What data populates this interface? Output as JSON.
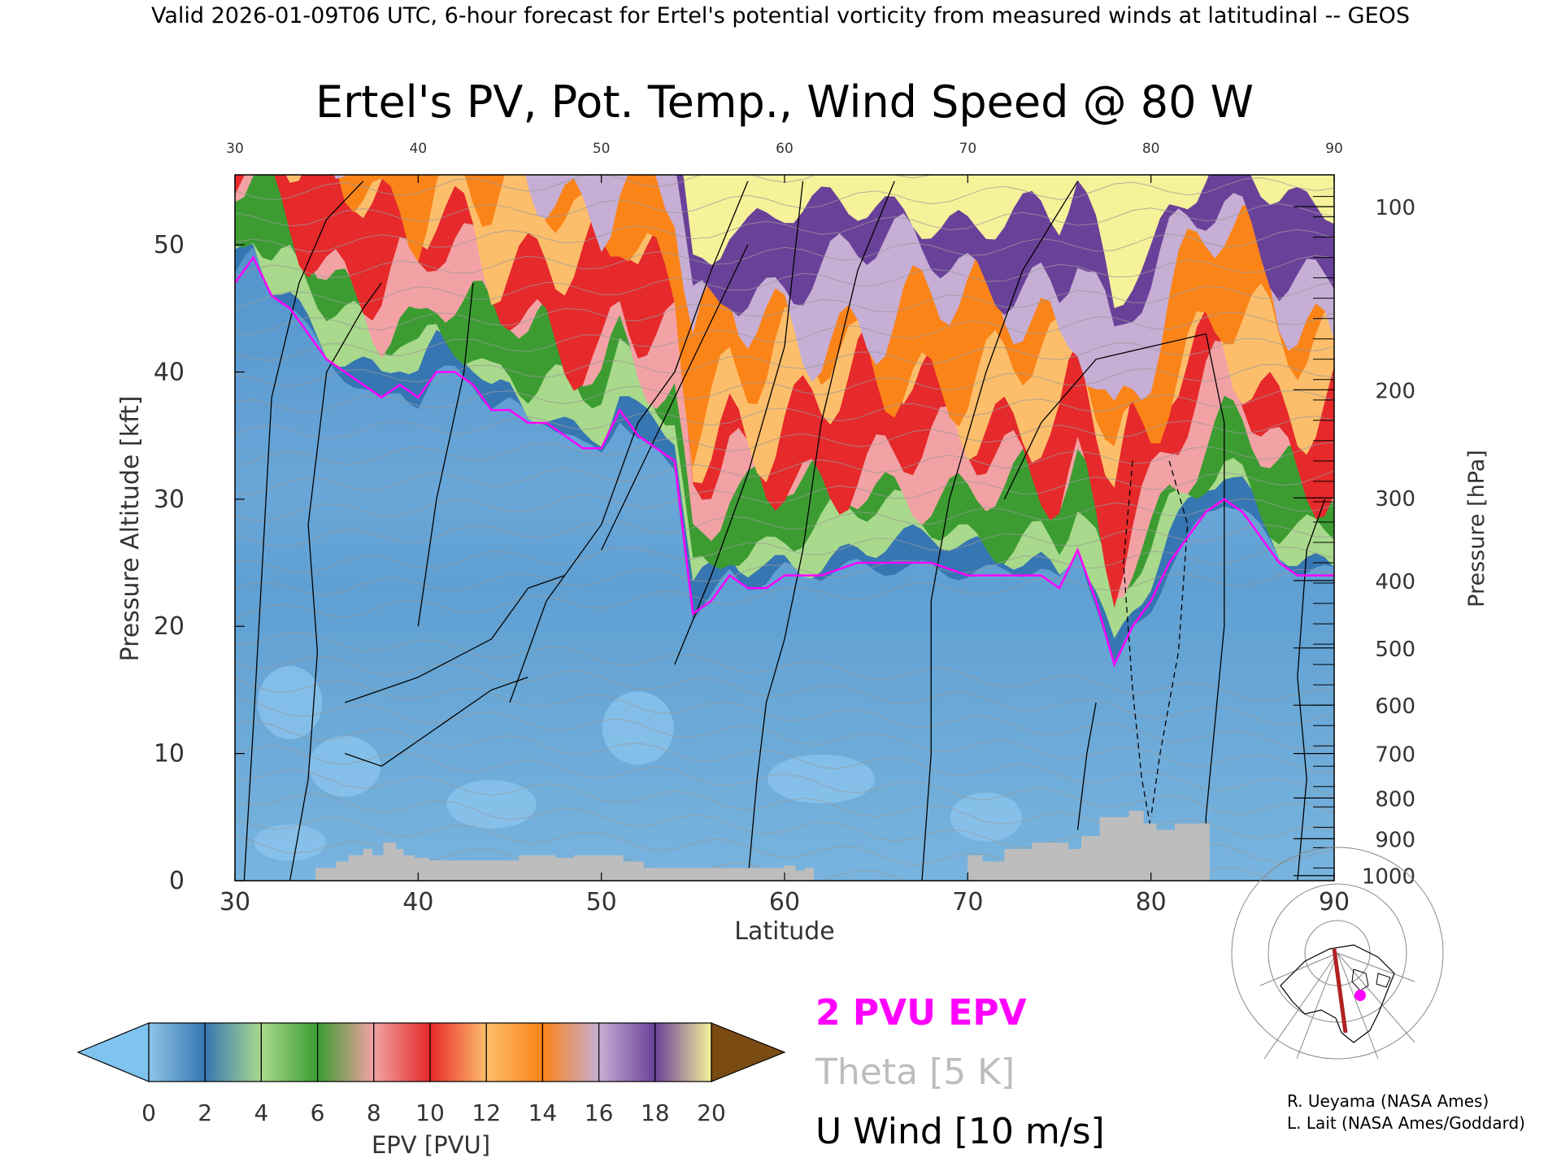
{
  "header": "Valid 2026-01-09T06 UTC, 6-hour forecast for Ertel's potential vorticity from measured winds at latitudinal -- GEOS",
  "chart_data": {
    "type": "heatmap",
    "title": "Ertel's PV, Pot. Temp., Wind Speed @ 80 W",
    "xlabel": "Latitude",
    "ylabel": "Pressure Altitude [kft]",
    "y2label": "Pressure [hPa]",
    "xlim": [
      30,
      90
    ],
    "ylim": [
      0,
      55.5
    ],
    "x_ticks": [
      "30",
      "40",
      "50",
      "60",
      "70",
      "80",
      "90"
    ],
    "y_ticks": [
      "0",
      "10",
      "20",
      "30",
      "40",
      "50"
    ],
    "y_tick_values": [
      0,
      10,
      20,
      30,
      40,
      50
    ],
    "pressure_ticks": [
      "100",
      "200",
      "300",
      "400",
      "500",
      "600",
      "700",
      "800",
      "900",
      "1000"
    ],
    "pressure_tick_kft": [
      53.0,
      38.6,
      30.1,
      23.6,
      18.3,
      13.8,
      10.0,
      6.5,
      3.3,
      0.4
    ],
    "tropopause_2pvu_kft": {
      "lat": [
        30,
        31,
        32,
        33,
        34,
        35,
        36,
        37,
        38,
        39,
        40,
        41,
        42,
        43,
        44,
        45,
        46,
        47,
        48,
        49,
        50,
        51,
        52,
        53,
        54,
        55,
        56,
        57,
        58,
        59,
        60,
        62,
        64,
        66,
        68,
        70,
        72,
        74,
        75,
        76,
        77,
        78,
        79,
        80,
        81,
        82,
        83,
        84,
        85,
        86,
        87,
        88,
        89,
        90
      ],
      "kft": [
        47,
        49,
        46,
        45,
        43,
        41,
        40,
        39,
        38,
        39,
        38,
        40,
        40,
        39,
        37,
        37,
        36,
        36,
        35,
        34,
        34,
        37,
        35,
        34,
        33,
        21,
        22,
        24,
        23,
        23,
        24,
        24,
        25,
        25,
        25,
        24,
        24,
        24,
        23,
        26,
        22,
        17,
        20,
        22,
        25,
        27,
        29,
        30,
        29,
        27,
        25,
        24,
        24,
        24
      ]
    },
    "terrain_kft": {
      "lat": [
        30,
        34.4,
        35.5,
        36.2,
        37,
        37.5,
        38.1,
        38.8,
        39.2,
        39.8,
        40.6,
        45.5,
        47.5,
        48.5,
        51.2,
        52.3,
        60,
        60.6,
        61.1,
        61.6,
        63.4,
        67.5,
        70,
        70.8,
        72,
        73.5,
        75.5,
        76.2,
        77.2,
        78.8,
        79.6,
        80.3,
        81.3,
        83.2,
        90
      ],
      "kft": [
        0,
        1,
        1.5,
        2,
        2.5,
        2,
        3,
        2.5,
        2,
        1.8,
        1.6,
        2,
        1.8,
        2,
        1.5,
        1,
        1.2,
        0.8,
        1,
        0,
        0,
        0,
        2,
        1.5,
        2.5,
        3,
        2.5,
        3.5,
        5,
        5.5,
        4.5,
        4,
        4.5,
        0,
        0
      ]
    },
    "colorbar": {
      "label": "EPV [PVU]",
      "tick_labels": [
        "0",
        "2",
        "4",
        "6",
        "8",
        "10",
        "12",
        "14",
        "16",
        "18",
        "20"
      ],
      "bin_colors": [
        "#8ec4e6",
        "#3676b2",
        "#a9d98c",
        "#3c9c32",
        "#f2a2a4",
        "#e6292b",
        "#fcbe6a",
        "#fb8419",
        "#c6aed4",
        "#6a4199",
        "#f5f29a"
      ],
      "under_color": "#7fc4ef",
      "over_color": "#7a4b13"
    },
    "legend": [
      {
        "label": "2 PVU EPV",
        "color": "#ff00ff"
      },
      {
        "label": "Theta [5 K]",
        "color": "#bdbdbd"
      },
      {
        "label": "U Wind [10 m/s]",
        "color": "#000000"
      }
    ],
    "grid": false
  },
  "credits": [
    "R. Ueyama (NASA Ames)",
    "L. Lait (NASA Ames/Goddard)"
  ]
}
